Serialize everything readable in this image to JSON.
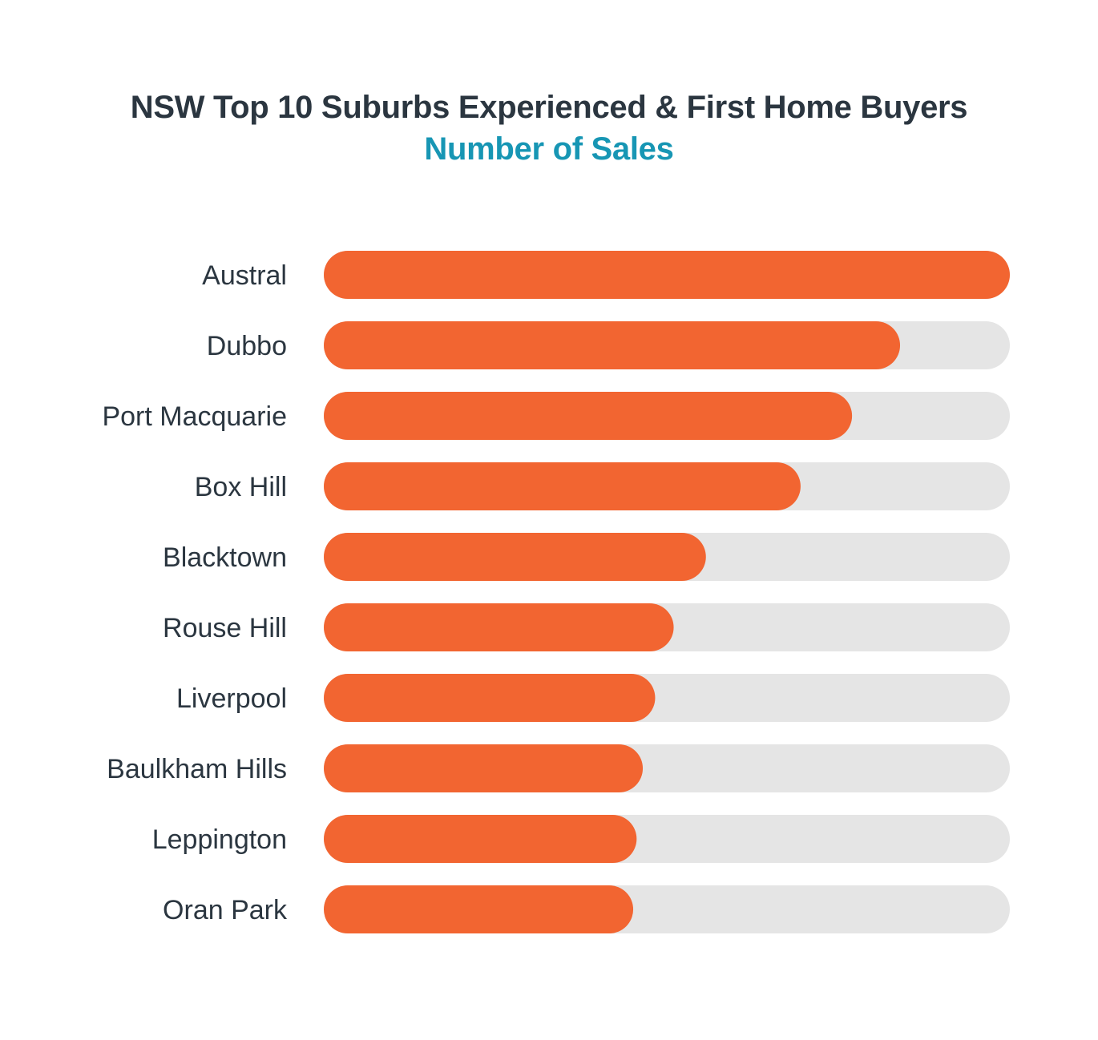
{
  "chart_data": {
    "type": "bar",
    "orientation": "horizontal",
    "title": "NSW Top 10 Suburbs Experienced & First Home Buyers",
    "subtitle": "Number of Sales",
    "categories": [
      "Austral",
      "Dubbo",
      "Port Macquarie",
      "Box Hill",
      "Blacktown",
      "Rouse Hill",
      "Liverpool",
      "Baulkham Hills",
      "Leppington",
      "Oran Park"
    ],
    "values": [
      100,
      84,
      77,
      69.5,
      55.7,
      51,
      48.3,
      46.5,
      45.6,
      45.1
    ],
    "xlim": [
      0,
      100
    ],
    "value_unit": "relative (% of top suburb)",
    "grid": false,
    "legend": "none",
    "colors": {
      "bar": "#f26531",
      "track": "#e5e5e5",
      "title": "#2b3640",
      "subtitle": "#1796b4",
      "label": "#2b3640"
    }
  }
}
